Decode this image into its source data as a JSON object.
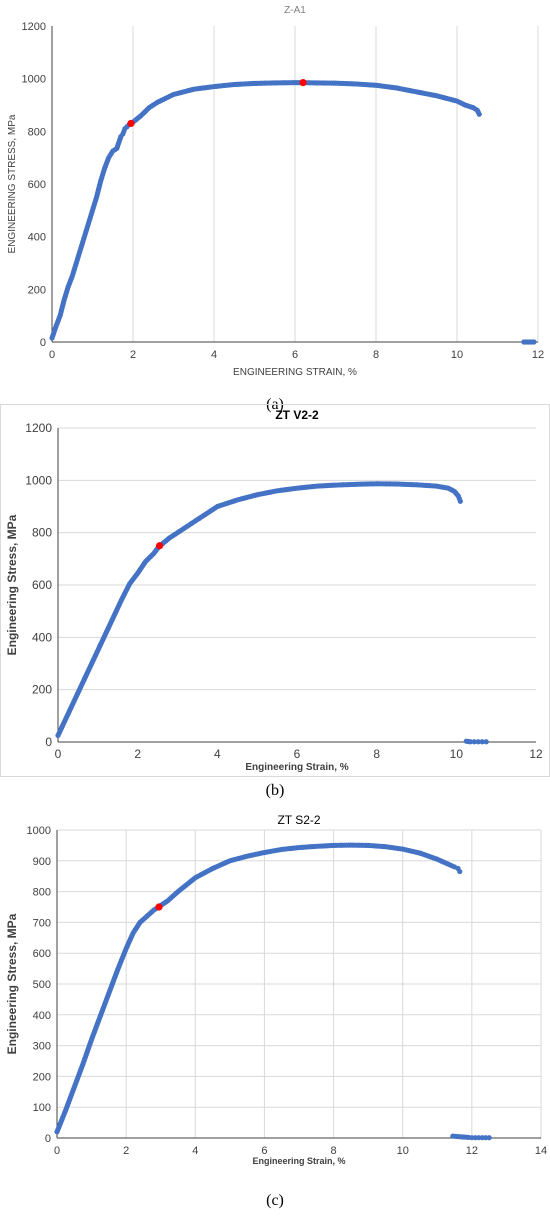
{
  "panel_labels": [
    "(a)",
    "(b)",
    "(c)"
  ],
  "chart_data": [
    {
      "type": "scatter",
      "title": "Z-A1",
      "xlabel": "ENGINEERING STRAIN, %",
      "ylabel": "ENGINEERING STRESS, MPa",
      "xlim": [
        0,
        12
      ],
      "ylim": [
        0,
        1200
      ],
      "xticks": [
        "0",
        "2",
        "4",
        "6",
        "8",
        "10",
        "12"
      ],
      "yticks": [
        "0",
        "200",
        "400",
        "600",
        "800",
        "1000",
        "1200"
      ],
      "grid": "vertical",
      "series": [
        {
          "color": "#4472C4",
          "x": [
            0.0,
            0.1,
            0.2,
            0.3,
            0.4,
            0.5,
            0.6,
            0.7,
            0.8,
            0.9,
            1.0,
            1.1,
            1.2,
            1.3,
            1.4,
            1.5,
            1.6,
            1.7,
            1.75,
            1.8,
            1.9,
            2.0,
            2.2,
            2.4,
            2.6,
            2.8,
            3.0,
            3.5,
            4.0,
            4.5,
            5.0,
            5.5,
            6.0,
            6.2,
            6.5,
            7.0,
            7.5,
            8.0,
            8.5,
            9.0,
            9.5,
            10.0,
            10.2,
            10.4,
            10.5,
            10.55
          ],
          "y": [
            15,
            60,
            100,
            160,
            210,
            250,
            300,
            350,
            400,
            450,
            500,
            550,
            610,
            660,
            700,
            725,
            735,
            780,
            790,
            810,
            825,
            835,
            860,
            890,
            910,
            925,
            940,
            960,
            970,
            978,
            982,
            984,
            985,
            985,
            984,
            983,
            980,
            975,
            965,
            950,
            935,
            915,
            900,
            890,
            880,
            865
          ]
        },
        {
          "color": "#4472C4",
          "x": [
            11.65,
            11.7,
            11.75,
            11.8,
            11.85,
            11.9
          ],
          "y": [
            0,
            0,
            0,
            0,
            0,
            0
          ]
        }
      ],
      "markers": [
        {
          "x": 1.95,
          "y": 830,
          "color": "#FF0000"
        },
        {
          "x": 6.2,
          "y": 985,
          "color": "#FF0000"
        }
      ]
    },
    {
      "type": "scatter",
      "title": "ZT V2-2",
      "xlabel": "Engineering Strain, %",
      "ylabel": "Engineering Stress, MPa",
      "xlim": [
        0,
        12
      ],
      "ylim": [
        0,
        1200
      ],
      "xticks": [
        "0",
        "2",
        "4",
        "6",
        "8",
        "10",
        "12"
      ],
      "yticks": [
        "0",
        "200",
        "400",
        "600",
        "800",
        "1000",
        "1200"
      ],
      "grid": "horizontal",
      "series": [
        {
          "color": "#4472C4",
          "x": [
            0.0,
            0.2,
            0.4,
            0.6,
            0.8,
            1.0,
            1.2,
            1.4,
            1.6,
            1.8,
            2.0,
            2.2,
            2.4,
            2.5,
            2.6,
            2.8,
            3.0,
            3.2,
            3.4,
            3.6,
            3.8,
            4.0,
            4.5,
            5.0,
            5.5,
            6.0,
            6.5,
            7.0,
            7.5,
            8.0,
            8.5,
            9.0,
            9.5,
            9.8,
            9.95,
            10.05,
            10.1
          ],
          "y": [
            25,
            90,
            155,
            220,
            285,
            350,
            415,
            480,
            545,
            605,
            645,
            690,
            720,
            740,
            755,
            780,
            800,
            820,
            840,
            860,
            880,
            900,
            925,
            945,
            960,
            970,
            978,
            982,
            985,
            987,
            986,
            983,
            978,
            970,
            958,
            940,
            920
          ]
        },
        {
          "color": "#4472C4",
          "x": [
            10.25,
            10.35,
            10.45,
            10.55,
            10.65,
            10.75
          ],
          "y": [
            3,
            1,
            1,
            1,
            1,
            1
          ]
        }
      ],
      "markers": [
        {
          "x": 2.55,
          "y": 750,
          "color": "#FF0000"
        }
      ]
    },
    {
      "type": "scatter",
      "title": "ZT S2-2",
      "xlabel": "Engineering Strain, %",
      "ylabel": "Engineering Stress, MPa",
      "xlim": [
        0,
        14
      ],
      "ylim": [
        0,
        1000
      ],
      "xticks": [
        "0",
        "2",
        "4",
        "6",
        "8",
        "10",
        "12",
        "14"
      ],
      "yticks": [
        "0",
        "100",
        "200",
        "300",
        "400",
        "500",
        "600",
        "700",
        "800",
        "900",
        "1000"
      ],
      "grid": "both",
      "series": [
        {
          "color": "#4472C4",
          "x": [
            0.0,
            0.25,
            0.5,
            0.75,
            1.0,
            1.25,
            1.5,
            1.75,
            2.0,
            2.2,
            2.4,
            2.6,
            2.8,
            3.0,
            3.2,
            3.5,
            4.0,
            4.5,
            5.0,
            5.5,
            6.0,
            6.5,
            7.0,
            7.5,
            8.0,
            8.5,
            9.0,
            9.5,
            10.0,
            10.5,
            11.0,
            11.3,
            11.5,
            11.6,
            11.65
          ],
          "y": [
            20,
            90,
            165,
            240,
            320,
            395,
            470,
            545,
            615,
            665,
            700,
            720,
            740,
            755,
            770,
            800,
            845,
            875,
            900,
            915,
            927,
            937,
            943,
            947,
            950,
            951,
            950,
            946,
            938,
            925,
            905,
            890,
            880,
            875,
            865
          ]
        },
        {
          "color": "#4472C4",
          "x": [
            11.45,
            11.9,
            12.0,
            12.1,
            12.2,
            12.3,
            12.4,
            12.5
          ],
          "y": [
            6,
            2,
            1,
            1,
            1,
            1,
            1,
            1
          ]
        }
      ],
      "markers": [
        {
          "x": 2.95,
          "y": 750,
          "color": "#FF0000"
        }
      ]
    }
  ]
}
